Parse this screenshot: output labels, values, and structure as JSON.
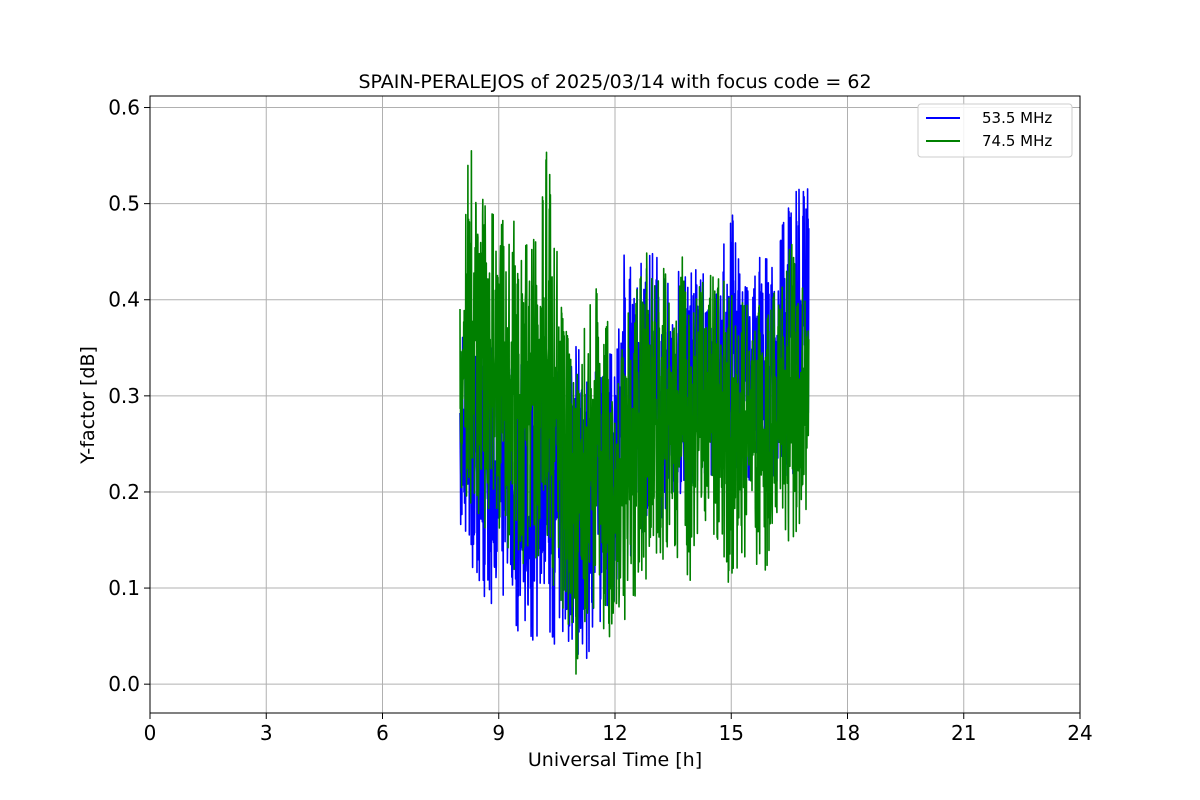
{
  "chart_data": {
    "type": "line",
    "title": "SPAIN-PERALEJOS of 2025/03/14 with focus code = 62",
    "xlabel": "Universal Time [h]",
    "ylabel": "Y-factor [dB]",
    "xlim": [
      0,
      24
    ],
    "ylim": [
      -0.03,
      0.612
    ],
    "xticks": [
      0,
      3,
      6,
      9,
      12,
      15,
      18,
      21,
      24
    ],
    "yticks": [
      0.0,
      0.1,
      0.2,
      0.3,
      0.4,
      0.5,
      0.6
    ],
    "ytick_labels": [
      "0.0",
      "0.1",
      "0.2",
      "0.3",
      "0.4",
      "0.5",
      "0.6"
    ],
    "grid": true,
    "legend_position": "top-right",
    "series": [
      {
        "name": "53.5 MHz",
        "color": "#0000ff",
        "x_range": [
          8.0,
          17.0
        ],
        "envelope": {
          "x": [
            8.0,
            8.25,
            8.5,
            8.75,
            9.0,
            9.25,
            9.5,
            9.75,
            10.0,
            10.25,
            10.5,
            10.75,
            11.0,
            11.25,
            11.5,
            11.75,
            12.0,
            12.25,
            12.5,
            12.75,
            13.0,
            13.25,
            13.5,
            13.75,
            14.0,
            14.25,
            14.5,
            14.75,
            15.0,
            15.25,
            15.5,
            15.75,
            16.0,
            16.25,
            16.5,
            16.75,
            17.0
          ],
          "upper": [
            0.36,
            0.4,
            0.37,
            0.36,
            0.35,
            0.33,
            0.34,
            0.32,
            0.34,
            0.33,
            0.32,
            0.36,
            0.36,
            0.35,
            0.34,
            0.35,
            0.34,
            0.46,
            0.44,
            0.47,
            0.47,
            0.43,
            0.42,
            0.44,
            0.46,
            0.43,
            0.42,
            0.45,
            0.51,
            0.44,
            0.42,
            0.45,
            0.44,
            0.47,
            0.5,
            0.52,
            0.54
          ],
          "lower": [
            0.15,
            0.13,
            0.09,
            0.08,
            0.08,
            0.08,
            0.05,
            0.04,
            0.05,
            0.01,
            0.05,
            0.04,
            0.03,
            0.0,
            0.05,
            0.07,
            0.08,
            0.12,
            0.14,
            0.15,
            0.16,
            0.17,
            0.18,
            0.19,
            0.2,
            0.2,
            0.2,
            0.2,
            0.21,
            0.2,
            0.2,
            0.21,
            0.21,
            0.21,
            0.22,
            0.21,
            0.22
          ]
        }
      },
      {
        "name": "74.5 MHz",
        "color": "#008000",
        "x_range": [
          8.0,
          17.0
        ],
        "envelope": {
          "x": [
            8.0,
            8.25,
            8.5,
            8.75,
            9.0,
            9.25,
            9.5,
            9.75,
            10.0,
            10.25,
            10.5,
            10.75,
            11.0,
            11.25,
            11.5,
            11.75,
            12.0,
            12.25,
            12.5,
            12.75,
            13.0,
            13.25,
            13.5,
            13.75,
            14.0,
            14.25,
            14.5,
            14.75,
            15.0,
            15.25,
            15.5,
            15.75,
            16.0,
            16.25,
            16.5,
            16.75,
            17.0
          ],
          "upper": [
            0.4,
            0.58,
            0.53,
            0.5,
            0.48,
            0.53,
            0.47,
            0.46,
            0.47,
            0.57,
            0.52,
            0.37,
            0.33,
            0.38,
            0.43,
            0.39,
            0.35,
            0.38,
            0.4,
            0.46,
            0.42,
            0.44,
            0.4,
            0.45,
            0.41,
            0.42,
            0.43,
            0.44,
            0.41,
            0.4,
            0.43,
            0.42,
            0.41,
            0.43,
            0.46,
            0.45,
            0.4
          ],
          "lower": [
            0.18,
            0.19,
            0.17,
            0.15,
            0.16,
            0.12,
            0.1,
            0.12,
            0.13,
            0.11,
            0.09,
            0.07,
            0.0,
            0.05,
            0.02,
            0.04,
            0.06,
            0.06,
            0.08,
            0.1,
            0.12,
            0.12,
            0.14,
            0.12,
            0.09,
            0.14,
            0.15,
            0.15,
            0.08,
            0.12,
            0.13,
            0.11,
            0.12,
            0.12,
            0.14,
            0.16,
            0.18
          ]
        }
      }
    ]
  }
}
